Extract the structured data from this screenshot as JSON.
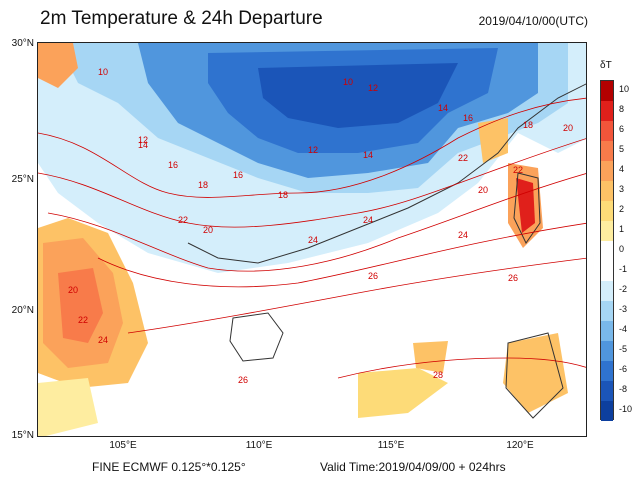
{
  "header": {
    "title": "2m Temperature & 24h Departure",
    "valid_time_utc": "2019/04/10/00(UTC)"
  },
  "footer": {
    "model": "FINE ECMWF 0.125°*0.125°",
    "valid_time": "Valid Time:2019/04/09/00 + 024hrs"
  },
  "axes": {
    "lat_labels": [
      "30°N",
      "25°N",
      "20°N",
      "15°N"
    ],
    "lon_labels": [
      "105°E",
      "110°E",
      "115°E",
      "120°E"
    ]
  },
  "legend": {
    "title": "δT",
    "labels": [
      "10",
      "8",
      "6",
      "5",
      "4",
      "3",
      "2",
      "1",
      "0",
      "-1",
      "-2",
      "-3",
      "-4",
      "-5",
      "-6",
      "-8",
      "-10"
    ],
    "colors": [
      "#b30000",
      "#e0201b",
      "#f2553a",
      "#f87b4a",
      "#fba25a",
      "#fdc266",
      "#fddb78",
      "#feeda0",
      "#ffffff",
      "#ffffff",
      "#d4eefb",
      "#a6d6f4",
      "#79b8ea",
      "#5096dd",
      "#2f73cf",
      "#1b55b8",
      "#0d3f9e"
    ]
  },
  "map": {
    "contour_labels": [
      "10",
      "10",
      "12",
      "14",
      "16",
      "18",
      "20",
      "22",
      "24",
      "26",
      "28",
      "12",
      "14",
      "16",
      "18",
      "20",
      "22",
      "24",
      "26",
      "20",
      "22",
      "24",
      "12",
      "14",
      "16",
      "18",
      "20",
      "22",
      "24",
      "26"
    ]
  }
}
